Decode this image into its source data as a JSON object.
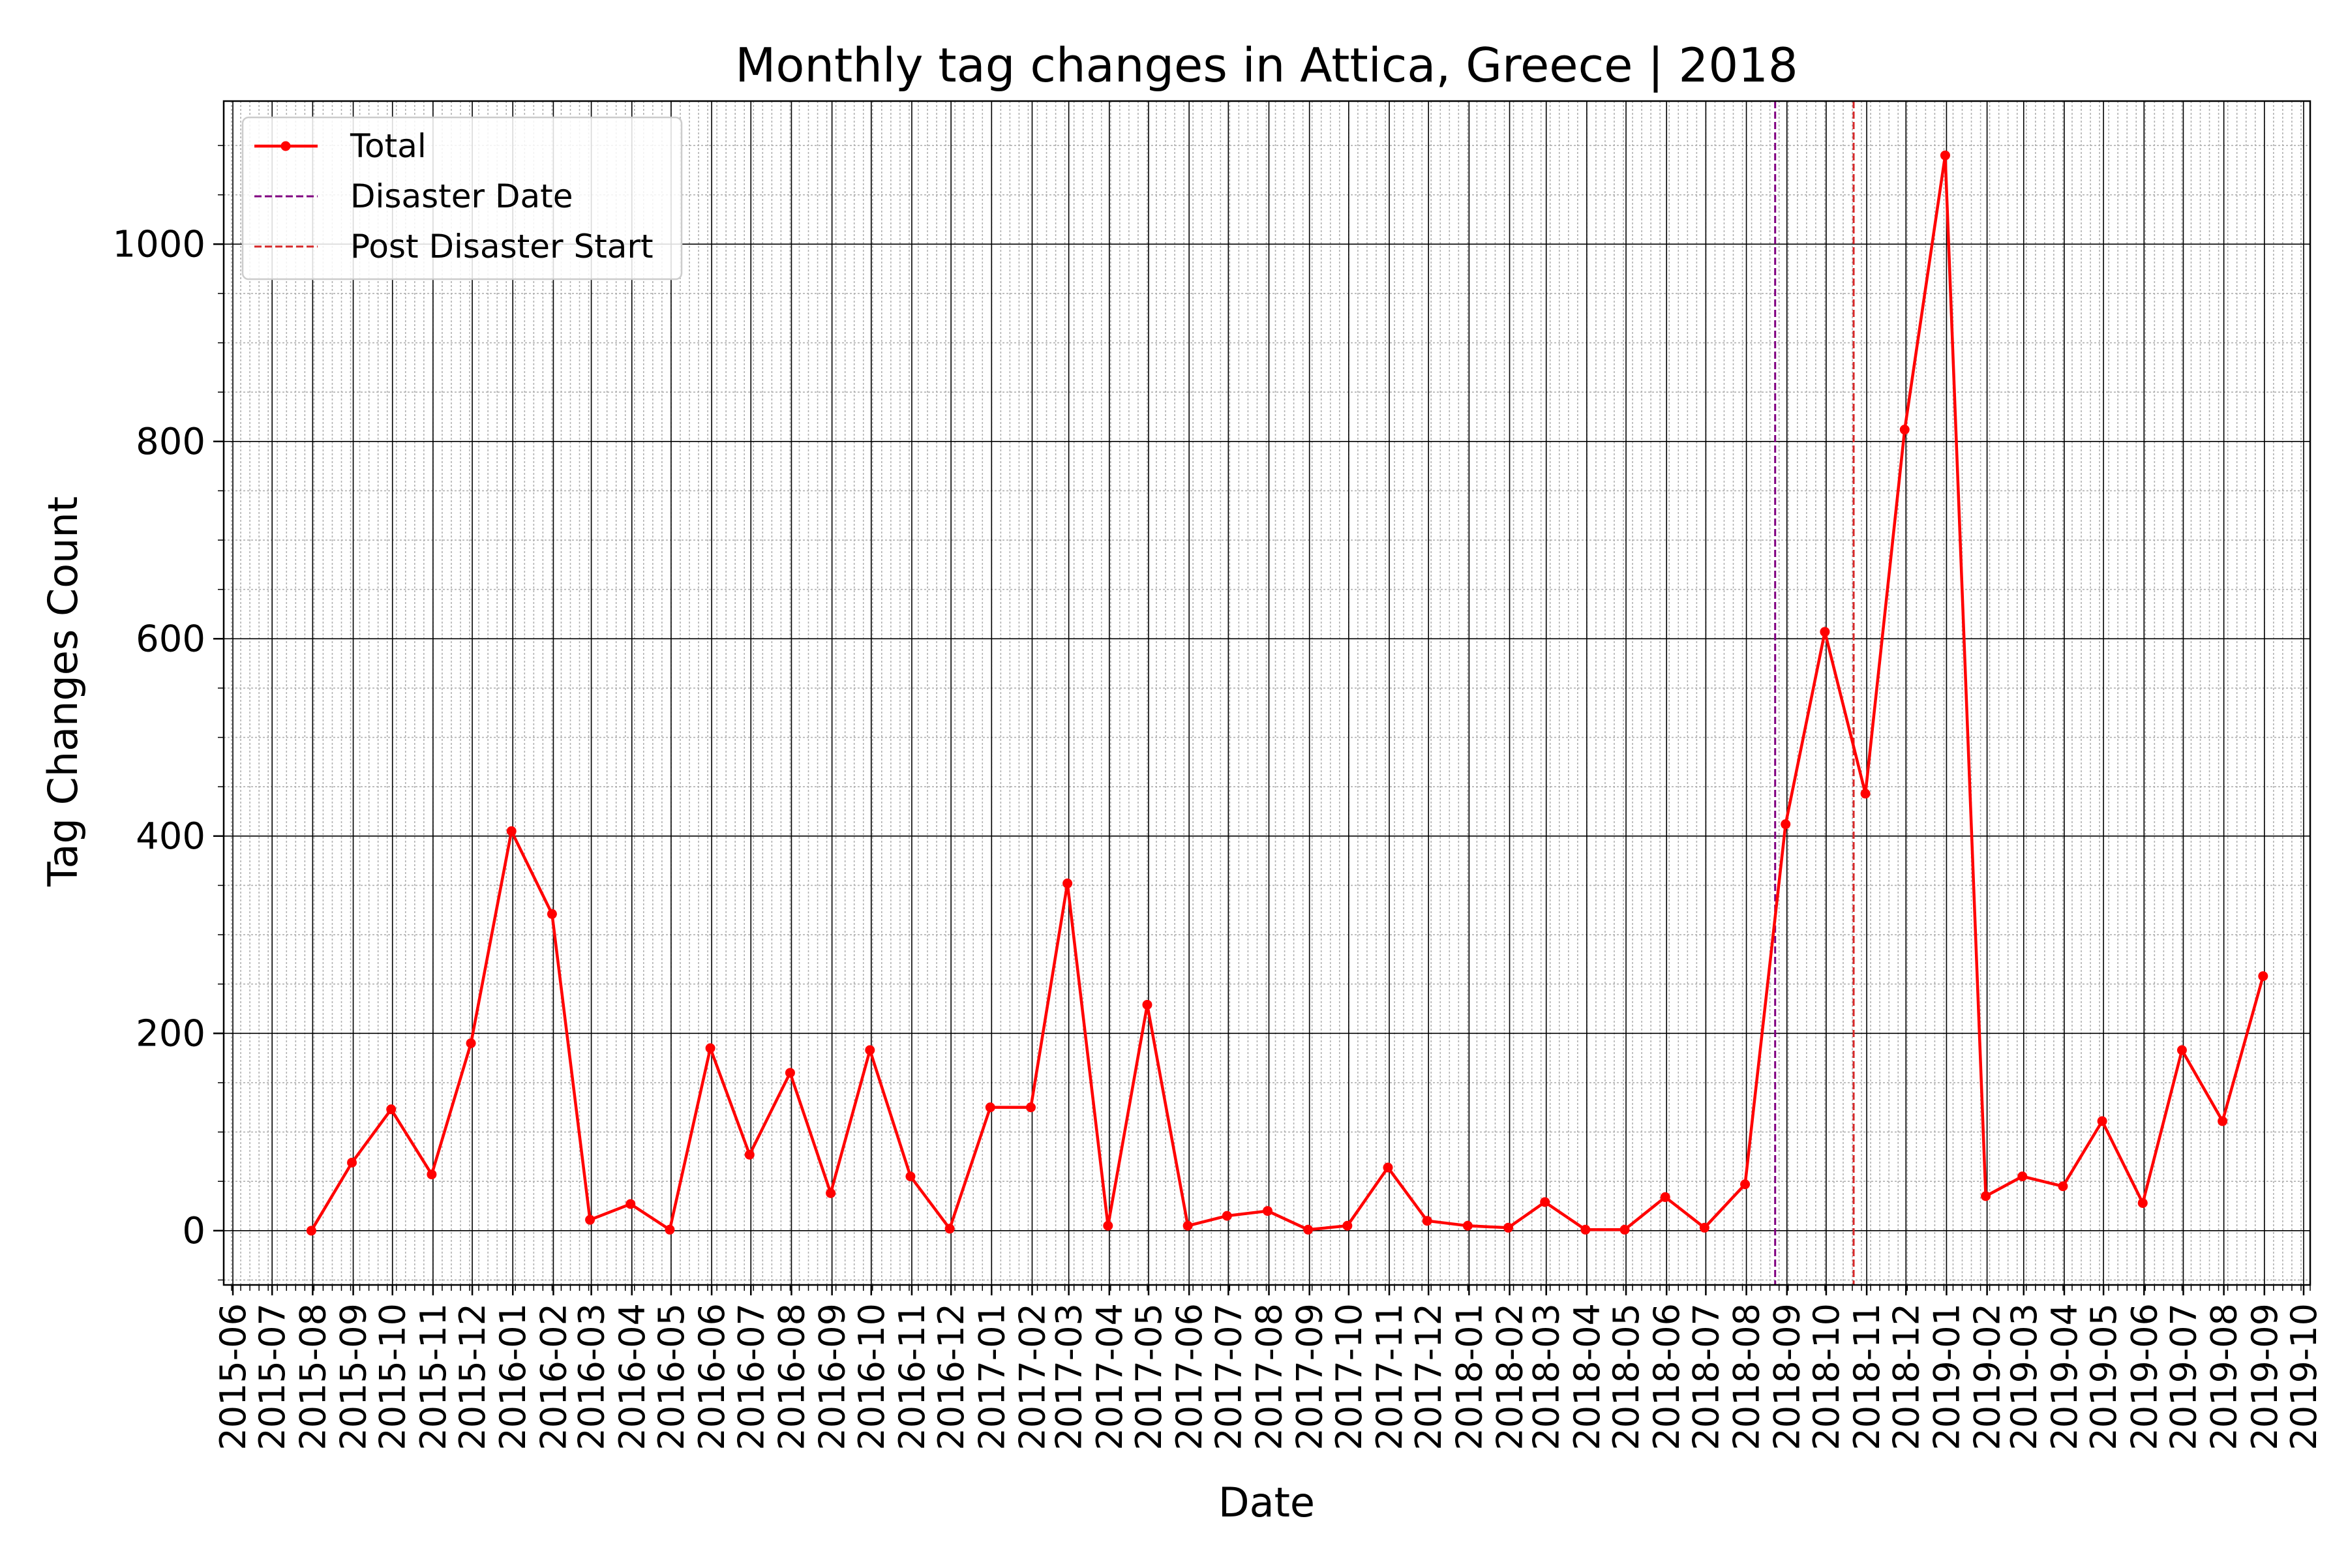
{
  "chart_data": {
    "type": "line",
    "title": "Monthly tag changes in Attica, Greece | 2018",
    "xlabel": "Date",
    "ylabel": "Tag Changes Count",
    "x_ticks": [
      "2015-06",
      "2015-07",
      "2015-08",
      "2015-09",
      "2015-10",
      "2015-11",
      "2015-12",
      "2016-01",
      "2016-02",
      "2016-03",
      "2016-04",
      "2016-05",
      "2016-06",
      "2016-07",
      "2016-08",
      "2016-09",
      "2016-10",
      "2016-11",
      "2016-12",
      "2017-01",
      "2017-02",
      "2017-03",
      "2017-04",
      "2017-05",
      "2017-06",
      "2017-07",
      "2017-08",
      "2017-09",
      "2017-10",
      "2017-11",
      "2017-12",
      "2018-01",
      "2018-02",
      "2018-03",
      "2018-04",
      "2018-05",
      "2018-06",
      "2018-07",
      "2018-08",
      "2018-09",
      "2018-10",
      "2018-11",
      "2018-12",
      "2019-01",
      "2019-02",
      "2019-03",
      "2019-04",
      "2019-05",
      "2019-06",
      "2019-07",
      "2019-08",
      "2019-09",
      "2019-10"
    ],
    "y_ticks": [
      0,
      200,
      400,
      600,
      800,
      1000
    ],
    "ylim": [
      -55,
      1145
    ],
    "xlim": [
      "2015-05-25",
      "2019-10-06"
    ],
    "grid": true,
    "legend_position": "top-left",
    "series": [
      {
        "name": "Total",
        "color": "#ff0000",
        "marker": "circle",
        "x": [
          "2015-07-31",
          "2015-08-31",
          "2015-09-30",
          "2015-10-31",
          "2015-11-30",
          "2015-12-31",
          "2016-01-31",
          "2016-02-29",
          "2016-03-31",
          "2016-04-30",
          "2016-05-31",
          "2016-06-30",
          "2016-07-31",
          "2016-08-31",
          "2016-09-30",
          "2016-10-31",
          "2016-11-30",
          "2016-12-31",
          "2017-01-31",
          "2017-02-28",
          "2017-03-31",
          "2017-04-30",
          "2017-05-31",
          "2017-06-30",
          "2017-07-31",
          "2017-08-31",
          "2017-09-30",
          "2017-10-31",
          "2017-11-30",
          "2017-12-31",
          "2018-01-31",
          "2018-02-28",
          "2018-03-31",
          "2018-04-30",
          "2018-05-31",
          "2018-06-30",
          "2018-07-31",
          "2018-08-31",
          "2018-09-30",
          "2018-10-31",
          "2018-11-30",
          "2018-12-31",
          "2019-01-31",
          "2019-02-28",
          "2019-03-31",
          "2019-04-30",
          "2019-05-31",
          "2019-06-30",
          "2019-07-31",
          "2019-08-31"
        ],
        "y": [
          0,
          69,
          123,
          57,
          190,
          405,
          321,
          11,
          27,
          1,
          185,
          77,
          160,
          38,
          183,
          55,
          2,
          125,
          125,
          352,
          5,
          229,
          5,
          15,
          20,
          1,
          5,
          64,
          10,
          5,
          3,
          29,
          1,
          1,
          34,
          3,
          47,
          412,
          607,
          443,
          812,
          1090,
          35,
          55,
          45,
          111,
          28,
          183,
          111,
          258
        ]
      }
    ],
    "vlines": [
      {
        "name": "Disaster Date",
        "x": "2018-08-23",
        "color": "#800080",
        "style": "dashed"
      },
      {
        "name": "Post Disaster Start",
        "x": "2018-10-22",
        "color": "#d62728",
        "style": "dashed"
      }
    ]
  }
}
